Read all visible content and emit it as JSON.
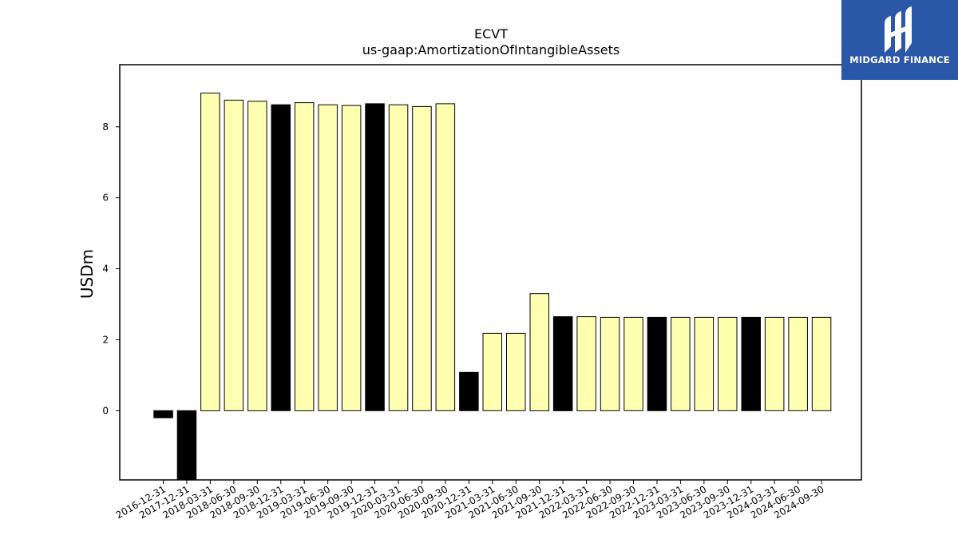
{
  "chart_data": {
    "type": "bar",
    "title": "ECVT",
    "subtitle": "us-gaap:AmortizationOfIntangibleAssets",
    "ylabel": "USDm",
    "xlabel": "",
    "ylim": [
      -1.95,
      9.75
    ],
    "yticks": [
      0,
      2,
      4,
      6,
      8
    ],
    "categories": [
      "2016-12-31",
      "2017-12-31",
      "2018-03-31",
      "2018-06-30",
      "2018-09-30",
      "2018-12-31",
      "2019-03-31",
      "2019-06-30",
      "2019-09-30",
      "2019-12-31",
      "2020-03-31",
      "2020-06-30",
      "2020-09-30",
      "2020-12-31",
      "2021-03-31",
      "2021-06-30",
      "2021-09-30",
      "2021-12-31",
      "2022-03-31",
      "2022-06-30",
      "2022-09-30",
      "2022-12-31",
      "2023-03-31",
      "2023-06-30",
      "2023-09-30",
      "2023-12-31",
      "2024-03-31",
      "2024-06-30",
      "2024-09-30"
    ],
    "values": [
      -0.2,
      -2.0,
      8.95,
      8.75,
      8.72,
      8.62,
      8.68,
      8.62,
      8.6,
      8.65,
      8.62,
      8.57,
      8.65,
      1.08,
      2.18,
      2.18,
      3.3,
      2.65,
      2.65,
      2.63,
      2.63,
      2.63,
      2.63,
      2.63,
      2.63,
      2.63,
      2.63,
      2.63,
      2.63
    ],
    "annual": [
      true,
      true,
      false,
      false,
      false,
      true,
      false,
      false,
      false,
      true,
      false,
      false,
      false,
      true,
      false,
      false,
      false,
      true,
      false,
      false,
      false,
      true,
      false,
      false,
      false,
      true,
      false,
      false,
      false
    ],
    "colors": {
      "annual": "#000000",
      "quarterly": "#ffffb2",
      "edge": "#000000"
    },
    "grid": false
  },
  "logo": {
    "text": "MIDGARD FINANCE",
    "background": "#2b57a8"
  }
}
